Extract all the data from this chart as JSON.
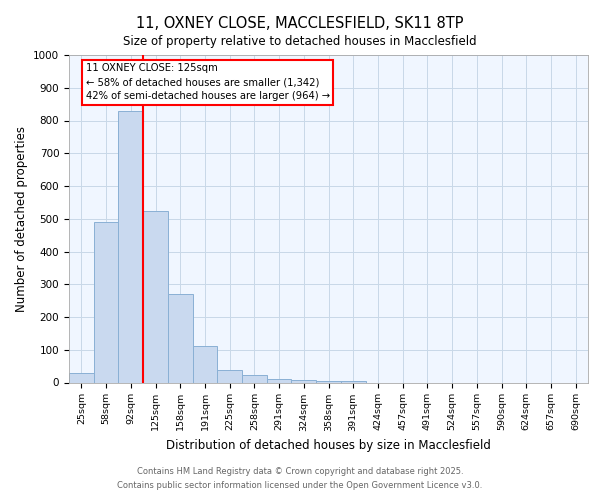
{
  "title_line1": "11, OXNEY CLOSE, MACCLESFIELD, SK11 8TP",
  "title_line2": "Size of property relative to detached houses in Macclesfield",
  "xlabel": "Distribution of detached houses by size in Macclesfield",
  "ylabel": "Number of detached properties",
  "categories": [
    "25sqm",
    "58sqm",
    "92sqm",
    "125sqm",
    "158sqm",
    "191sqm",
    "225sqm",
    "258sqm",
    "291sqm",
    "324sqm",
    "358sqm",
    "391sqm",
    "424sqm",
    "457sqm",
    "491sqm",
    "524sqm",
    "557sqm",
    "590sqm",
    "624sqm",
    "657sqm",
    "690sqm"
  ],
  "values": [
    28,
    490,
    830,
    525,
    270,
    110,
    37,
    22,
    12,
    8,
    5,
    5,
    0,
    0,
    0,
    0,
    0,
    0,
    0,
    0,
    0
  ],
  "bar_color": "#c9d9ef",
  "bar_edge_color": "#8ab0d4",
  "red_line_index": 3,
  "annotation_text": "11 OXNEY CLOSE: 125sqm\n← 58% of detached houses are smaller (1,342)\n42% of semi-detached houses are larger (964) →",
  "ylim": [
    0,
    1000
  ],
  "yticks": [
    0,
    100,
    200,
    300,
    400,
    500,
    600,
    700,
    800,
    900,
    1000
  ],
  "footer_line1": "Contains HM Land Registry data © Crown copyright and database right 2025.",
  "footer_line2": "Contains public sector information licensed under the Open Government Licence v3.0.",
  "grid_color": "#c8d8e8",
  "axes_bg": "#f0f6ff"
}
